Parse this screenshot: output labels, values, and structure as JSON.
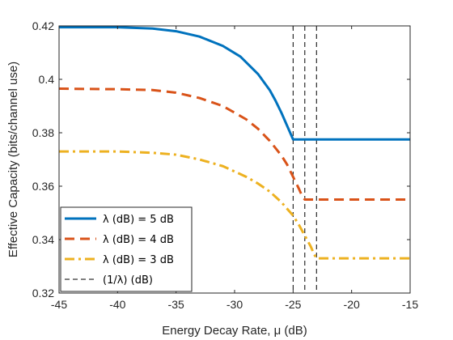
{
  "chart_data": {
    "type": "line",
    "xlabel": "Energy Decay Rate, μ (dB)",
    "ylabel": "Effective Capacity (bits/channel use)",
    "xlim": [
      -45,
      -15
    ],
    "ylim": [
      0.32,
      0.42
    ],
    "xticks": [
      "-45",
      "-40",
      "-35",
      "-30",
      "-25",
      "-20",
      "-15"
    ],
    "yticks": [
      "0.32",
      "0.34",
      "0.36",
      "0.38",
      "0.4",
      "0.42"
    ],
    "grid": false,
    "legend_position": "bottom-left",
    "series": [
      {
        "name": "λ (dB) = 5 dB",
        "color": "#0072BD",
        "dash": "solid",
        "x": [
          -45,
          -40,
          -37,
          -35,
          -33,
          -31,
          -29.5,
          -28,
          -27,
          -26.5,
          -26,
          -25.5,
          -25.2,
          -25,
          -15
        ],
        "y": [
          0.4195,
          0.4195,
          0.419,
          0.418,
          0.416,
          0.4125,
          0.4085,
          0.402,
          0.396,
          0.392,
          0.3875,
          0.3825,
          0.3795,
          0.3775,
          0.3775
        ]
      },
      {
        "name": "λ (dB) = 4 dB",
        "color": "#D95319",
        "dash": "dashed",
        "x": [
          -45,
          -40,
          -37,
          -35,
          -33,
          -31,
          -29,
          -28,
          -27,
          -26,
          -25.5,
          -25,
          -24.5,
          -24.2,
          -24,
          -15
        ],
        "y": [
          0.3965,
          0.3963,
          0.396,
          0.395,
          0.393,
          0.39,
          0.385,
          0.3815,
          0.377,
          0.3715,
          0.368,
          0.3635,
          0.359,
          0.356,
          0.355,
          0.355
        ]
      },
      {
        "name": "λ (dB) = 3 dB",
        "color": "#EDB120",
        "dash": "dashdot",
        "x": [
          -45,
          -40,
          -37,
          -35,
          -33,
          -31,
          -29,
          -28,
          -27,
          -26,
          -25,
          -24.5,
          -24,
          -23.5,
          -23.2,
          -23,
          -15
        ],
        "y": [
          0.373,
          0.373,
          0.3725,
          0.3718,
          0.37,
          0.3675,
          0.3635,
          0.361,
          0.358,
          0.354,
          0.349,
          0.3455,
          0.3415,
          0.3375,
          0.3345,
          0.333,
          0.333
        ]
      }
    ],
    "vertical_lines": {
      "name": "(1/λ) (dB)",
      "color": "#000000",
      "dash": "thin-dashed",
      "x": [
        -25,
        -24,
        -23
      ]
    }
  }
}
